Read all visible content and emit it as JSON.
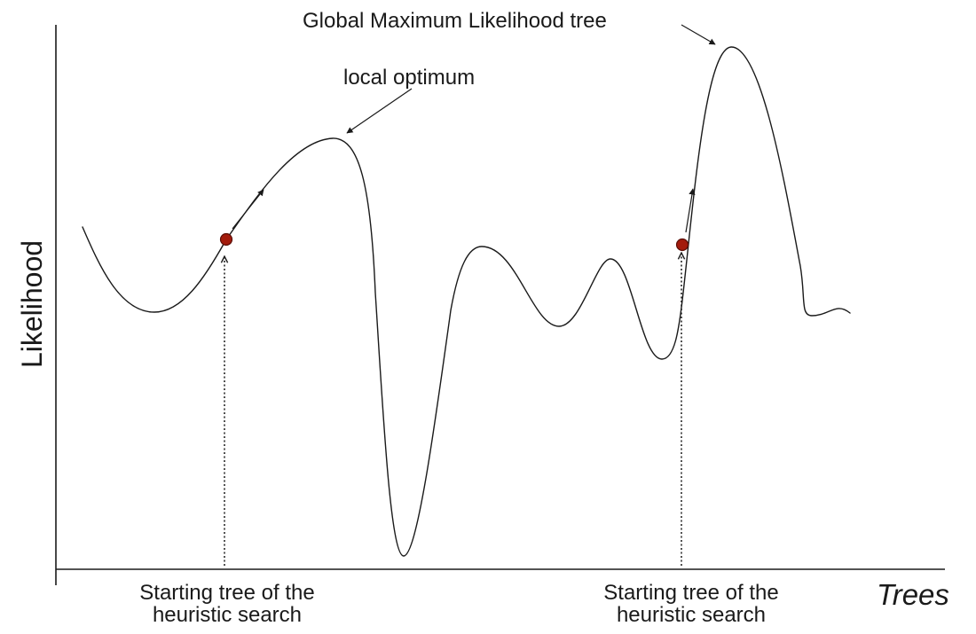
{
  "annotations": {
    "global_optimum": "Global Maximum Likelihood tree",
    "local_optimum": "local optimum"
  },
  "axes": {
    "y_label": "Likelihood",
    "x_label": "Trees"
  },
  "start_labels": [
    {
      "line1": "Starting tree of the",
      "line2": "heuristic search"
    },
    {
      "line1": "Starting tree of the",
      "line2": "heuristic search"
    }
  ],
  "colors": {
    "curve": "#1a1a1a",
    "start_point": "#a31b0c",
    "start_point_outline": "#5a0e06"
  }
}
